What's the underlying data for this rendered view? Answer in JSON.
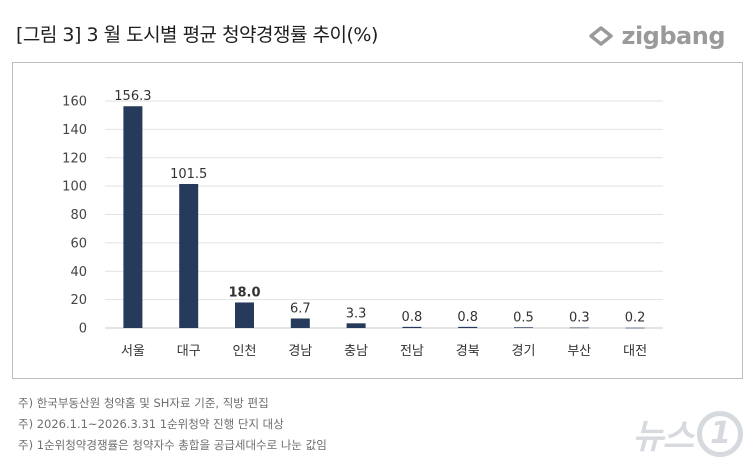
{
  "title": "[그림 3] 3 월 도시별 평균 청약경쟁률 추이(%)",
  "logo": {
    "text": "zigbang",
    "icon": "zigbang-logo-icon",
    "color": "#9a9a9a"
  },
  "chart_data": {
    "type": "bar",
    "categories": [
      "서울",
      "대구",
      "인천",
      "경남",
      "충남",
      "전남",
      "경북",
      "경기",
      "부산",
      "대전"
    ],
    "values": [
      156.3,
      101.5,
      18.0,
      6.7,
      3.3,
      0.8,
      0.8,
      0.5,
      0.3,
      0.2
    ],
    "value_labels": [
      "156.3",
      "101.5",
      "18.0",
      "6.7",
      "3.3",
      "0.8",
      "0.8",
      "0.5",
      "0.3",
      "0.2"
    ],
    "yticks": [
      0,
      20,
      40,
      60,
      80,
      100,
      120,
      140,
      160
    ],
    "ylim": [
      0,
      160
    ],
    "grid": true,
    "legend": "none",
    "bar_color": "#263a5c"
  },
  "notes": [
    "주) 한국부동산원 청약홈 및 SH자료 기준, 직방 편집",
    "주) 2026.1.1~2026.3.31 1순위청약 진행 단지 대상",
    "주) 1순위청약경쟁률은 청약자수 총합을 공급세대수로 나눈 값임"
  ],
  "watermark": {
    "text": "뉴스",
    "mark": "1",
    "color": "#d6d9de"
  }
}
